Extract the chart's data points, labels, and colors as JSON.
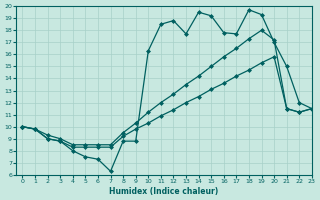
{
  "xlabel": "Humidex (Indice chaleur)",
  "bg_color": "#c8e8e0",
  "line_color": "#006060",
  "grid_color": "#a8d0c8",
  "xlim": [
    -0.5,
    23
  ],
  "ylim": [
    6,
    20
  ],
  "xticks": [
    0,
    1,
    2,
    3,
    4,
    5,
    6,
    7,
    8,
    9,
    10,
    11,
    12,
    13,
    14,
    15,
    16,
    17,
    18,
    19,
    20,
    21,
    22,
    23
  ],
  "yticks": [
    6,
    7,
    8,
    9,
    10,
    11,
    12,
    13,
    14,
    15,
    16,
    17,
    18,
    19,
    20
  ],
  "line1_x": [
    0,
    1,
    2,
    3,
    4,
    5,
    6,
    7,
    8,
    9,
    10,
    11,
    12,
    13,
    14,
    15,
    16,
    17,
    18,
    19,
    20,
    21,
    22,
    23
  ],
  "line1_y": [
    10,
    9.8,
    9.0,
    8.8,
    8.3,
    8.3,
    8.3,
    8.3,
    9.2,
    9.8,
    10.3,
    10.9,
    11.4,
    12.0,
    12.5,
    13.1,
    13.6,
    14.2,
    14.7,
    15.3,
    15.8,
    11.5,
    11.2,
    11.5
  ],
  "line2_x": [
    0,
    1,
    2,
    3,
    4,
    5,
    6,
    7,
    8,
    9,
    10,
    11,
    12,
    13,
    14,
    15,
    16,
    17,
    18,
    19,
    20,
    21,
    22,
    23
  ],
  "line2_y": [
    10,
    9.8,
    9.0,
    8.8,
    8.0,
    7.5,
    7.3,
    6.3,
    8.8,
    8.8,
    16.3,
    18.5,
    18.8,
    17.7,
    19.5,
    19.2,
    17.8,
    17.7,
    19.7,
    19.3,
    17.0,
    15.0,
    12.0,
    11.5
  ],
  "line3_x": [
    0,
    1,
    2,
    3,
    4,
    5,
    6,
    7,
    8,
    9,
    10,
    11,
    12,
    13,
    14,
    15,
    16,
    17,
    18,
    19,
    20,
    21,
    22,
    23
  ],
  "line3_y": [
    10,
    9.8,
    9.3,
    9.0,
    8.5,
    8.5,
    8.5,
    8.5,
    9.5,
    10.3,
    11.2,
    12.0,
    12.7,
    13.5,
    14.2,
    15.0,
    15.8,
    16.5,
    17.3,
    18.0,
    17.2,
    11.5,
    11.2,
    11.5
  ]
}
